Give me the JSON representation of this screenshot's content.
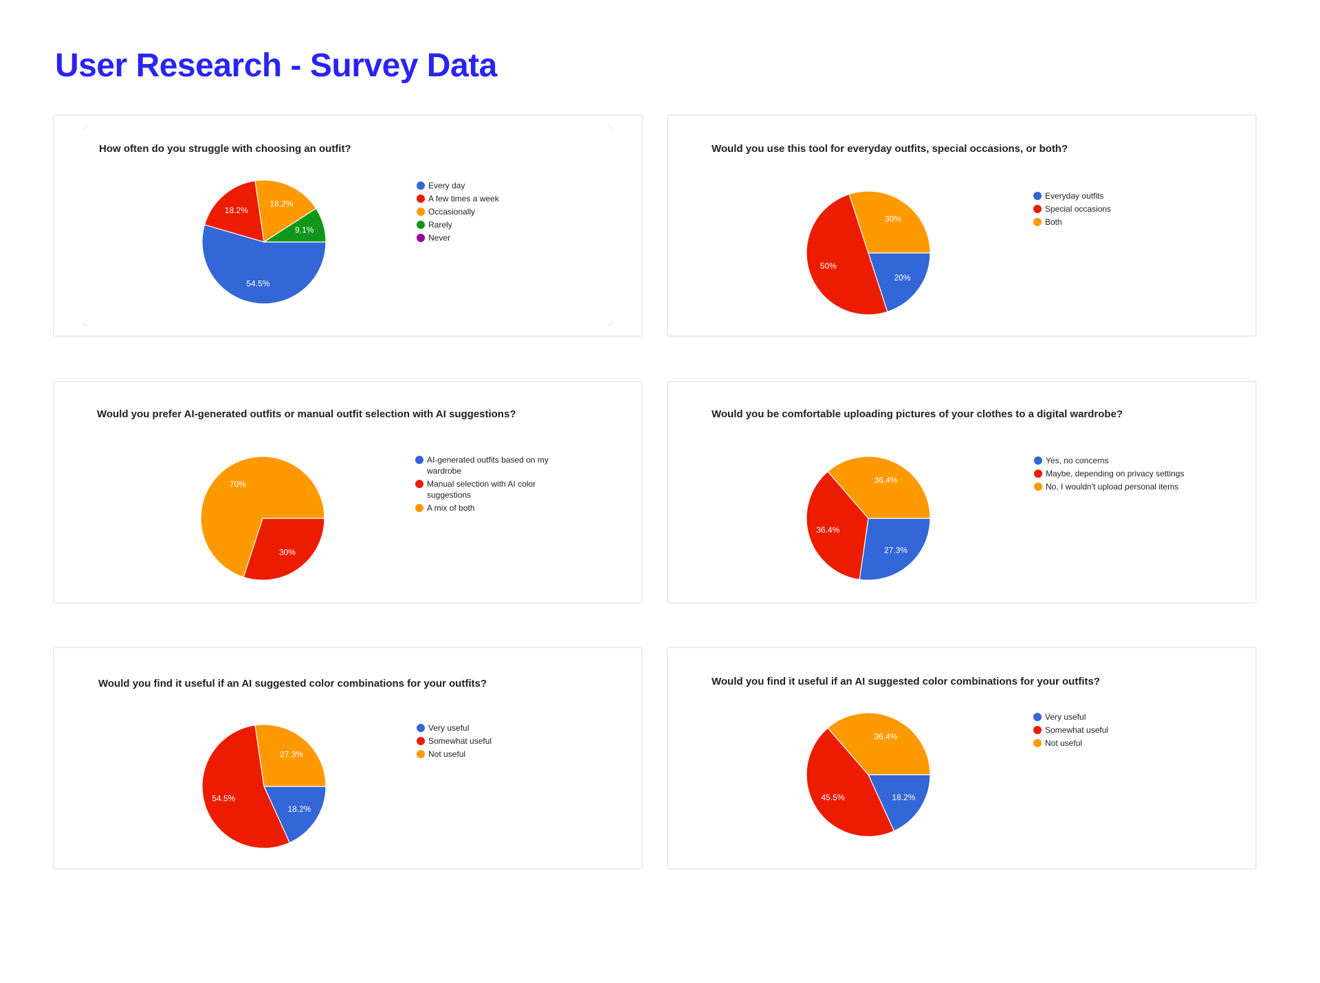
{
  "page": {
    "title": "User Research - Survey Data",
    "title_color": "#2a24f2"
  },
  "colors": {
    "blue": "#3366d6",
    "red": "#ec1c00",
    "orange": "#ff9900",
    "green": "#109618",
    "purple": "#990099"
  },
  "cards": [
    {
      "title": "How often do you struggle with choosing an outfit?",
      "legend": [
        {
          "label": "Every day",
          "color": "#3366d6"
        },
        {
          "label": "A few times a week",
          "color": "#ec1c00"
        },
        {
          "label": "Occasionally",
          "color": "#ff9900"
        },
        {
          "label": "Rarely",
          "color": "#109618"
        },
        {
          "label": "Never",
          "color": "#990099"
        }
      ]
    },
    {
      "title": "Would you use this tool for everyday outfits, special occasions, or both?",
      "legend": [
        {
          "label": "Everyday outfits",
          "color": "#3366d6"
        },
        {
          "label": "Special occasions",
          "color": "#ec1c00"
        },
        {
          "label": "Both",
          "color": "#ff9900"
        }
      ]
    },
    {
      "title": "Would you prefer AI-generated outfits or manual outfit selection with AI suggestions?",
      "legend": [
        {
          "label": "AI-generated outfits based on my wardrobe",
          "color": "#3366d6"
        },
        {
          "label": "Manual selection with AI color suggestions",
          "color": "#ec1c00"
        },
        {
          "label": "A mix of both",
          "color": "#ff9900"
        }
      ]
    },
    {
      "title": "Would you be comfortable uploading pictures of your clothes to a digital wardrobe?",
      "legend": [
        {
          "label": "Yes, no concerns",
          "color": "#3366d6"
        },
        {
          "label": "Maybe, depending on privacy settings",
          "color": "#ec1c00"
        },
        {
          "label": "No, I wouldn't upload personal items",
          "color": "#ff9900"
        }
      ]
    },
    {
      "title": "Would you find it useful if an AI suggested color combinations for your outfits?",
      "legend": [
        {
          "label": "Very useful",
          "color": "#3366d6"
        },
        {
          "label": "Somewhat useful",
          "color": "#ec1c00"
        },
        {
          "label": "Not useful",
          "color": "#ff9900"
        }
      ]
    },
    {
      "title": "Would you find it useful if an AI suggested color combinations for your outfits?",
      "legend": [
        {
          "label": "Very useful",
          "color": "#3366d6"
        },
        {
          "label": "Somewhat useful",
          "color": "#ec1c00"
        },
        {
          "label": "Not useful",
          "color": "#ff9900"
        }
      ]
    }
  ],
  "chart_data": [
    {
      "type": "pie",
      "title": "How often do you struggle with choosing an outfit?",
      "categories": [
        "Every day",
        "A few times a week",
        "Occasionally",
        "Rarely",
        "Never"
      ],
      "values": [
        54.5,
        18.2,
        18.2,
        9.1,
        0
      ],
      "labels": [
        "54.5%",
        "18.2%",
        "18.2%",
        "9.1%",
        ""
      ],
      "colors": [
        "#3366d6",
        "#ec1c00",
        "#ff9900",
        "#109618",
        "#990099"
      ],
      "legend_position": "right"
    },
    {
      "type": "pie",
      "title": "Would you use this tool for everyday outfits, special occasions, or both?",
      "categories": [
        "Everyday outfits",
        "Special occasions",
        "Both"
      ],
      "values": [
        20,
        50,
        30
      ],
      "labels": [
        "20%",
        "50%",
        "30%"
      ],
      "colors": [
        "#3366d6",
        "#ec1c00",
        "#ff9900"
      ],
      "legend_position": "right"
    },
    {
      "type": "pie",
      "title": "Would you prefer AI-generated outfits or manual outfit selection with AI suggestions?",
      "categories": [
        "AI-generated outfits based on my wardrobe",
        "Manual selection with AI color suggestions",
        "A mix of both"
      ],
      "values": [
        0,
        30,
        70
      ],
      "labels": [
        "",
        "30%",
        "70%"
      ],
      "colors": [
        "#3366d6",
        "#ec1c00",
        "#ff9900"
      ],
      "legend_position": "right"
    },
    {
      "type": "pie",
      "title": "Would you be comfortable uploading pictures of your clothes to a digital wardrobe?",
      "categories": [
        "Yes, no concerns",
        "Maybe, depending on privacy settings",
        "No, I wouldn't upload personal items"
      ],
      "values": [
        27.3,
        36.4,
        36.4
      ],
      "labels": [
        "27.3%",
        "36.4%",
        "36.4%"
      ],
      "colors": [
        "#3366d6",
        "#ec1c00",
        "#ff9900"
      ],
      "legend_position": "right"
    },
    {
      "type": "pie",
      "title": "Would you find it useful if an AI suggested color combinations for your outfits?",
      "categories": [
        "Very useful",
        "Somewhat useful",
        "Not useful"
      ],
      "values": [
        18.2,
        54.5,
        27.3
      ],
      "labels": [
        "18.2%",
        "54.5%",
        "27.3%"
      ],
      "colors": [
        "#3366d6",
        "#ec1c00",
        "#ff9900"
      ],
      "legend_position": "right"
    },
    {
      "type": "pie",
      "title": "Would you find it useful if an AI suggested color combinations for your outfits?",
      "categories": [
        "Very useful",
        "Somewhat useful",
        "Not useful"
      ],
      "values": [
        18.2,
        45.5,
        36.4
      ],
      "labels": [
        "18.2%",
        "45.5%",
        "36.4%"
      ],
      "colors": [
        "#3366d6",
        "#ec1c00",
        "#ff9900"
      ],
      "legend_position": "right"
    }
  ]
}
